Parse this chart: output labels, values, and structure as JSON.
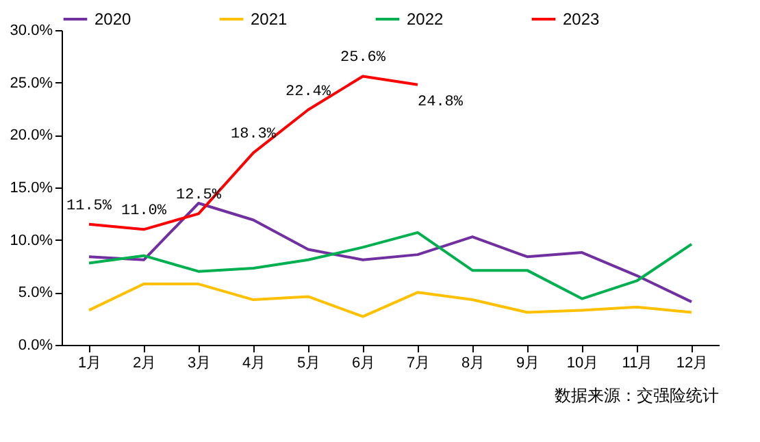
{
  "chart_data": {
    "type": "line",
    "categories": [
      "1月",
      "2月",
      "3月",
      "4月",
      "5月",
      "6月",
      "7月",
      "8月",
      "9月",
      "10月",
      "11月",
      "12月"
    ],
    "series": [
      {
        "name": "2020",
        "color": "#7030a0",
        "values": [
          8.4,
          8.1,
          13.5,
          11.9,
          9.1,
          8.1,
          8.6,
          10.3,
          8.4,
          8.8,
          6.6,
          4.1
        ]
      },
      {
        "name": "2021",
        "color": "#ffc000",
        "values": [
          3.3,
          5.8,
          5.8,
          4.3,
          4.6,
          2.7,
          5.0,
          4.3,
          3.1,
          3.3,
          3.6,
          3.1
        ]
      },
      {
        "name": "2022",
        "color": "#00b050",
        "values": [
          7.8,
          8.5,
          7.0,
          7.3,
          8.1,
          9.3,
          10.7,
          7.1,
          7.1,
          4.4,
          6.1,
          9.6
        ]
      },
      {
        "name": "2023",
        "color": "#ff0000",
        "values": [
          11.5,
          11.0,
          12.5,
          18.3,
          22.4,
          25.6,
          24.8,
          null,
          null,
          null,
          null,
          null
        ],
        "value_labels": [
          "11.5%",
          "11.0%",
          "12.5%",
          "18.3%",
          "22.4%",
          "25.6%",
          "24.8%",
          null,
          null,
          null,
          null,
          null
        ]
      }
    ],
    "ylim": [
      0,
      30
    ],
    "yticks": [
      {
        "value": 0,
        "label": "0.0%"
      },
      {
        "value": 5,
        "label": "5.0%"
      },
      {
        "value": 10,
        "label": "10.0%"
      },
      {
        "value": 15,
        "label": "15.0%"
      },
      {
        "value": 20,
        "label": "20.0%"
      },
      {
        "value": 25,
        "label": "25.0%"
      },
      {
        "value": 30,
        "label": "30.0%"
      }
    ],
    "grid": false,
    "legend": "top",
    "marker": "none",
    "line_style": "solid",
    "annotations": [
      "数据来源：交强险统计"
    ]
  }
}
